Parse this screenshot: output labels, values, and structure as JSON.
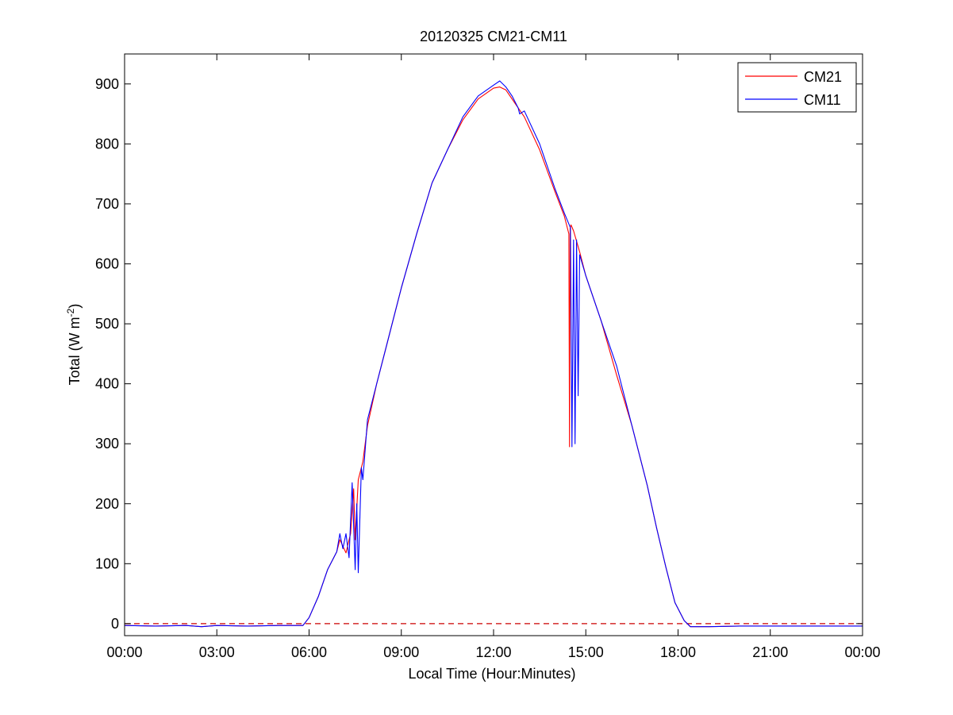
{
  "chart_data": {
    "type": "line",
    "title": "20120325 CM21-CM11",
    "xlabel": "Local Time (Hour:Minutes)",
    "ylabel": {
      "prefix": "Total (W m",
      "exponent": "-2",
      "suffix": ")"
    },
    "xlim": [
      0,
      24
    ],
    "ylim": [
      -20,
      950
    ],
    "x_ticks": [
      0,
      3,
      6,
      9,
      12,
      15,
      18,
      21,
      24
    ],
    "x_tick_labels": [
      "00:00",
      "03:00",
      "06:00",
      "09:00",
      "12:00",
      "15:00",
      "18:00",
      "21:00",
      "00:00"
    ],
    "y_ticks": [
      0,
      100,
      200,
      300,
      400,
      500,
      600,
      700,
      800,
      900
    ],
    "y_tick_labels": [
      "0",
      "100",
      "200",
      "300",
      "400",
      "500",
      "600",
      "700",
      "800",
      "900"
    ],
    "x_units": "hours",
    "grid": false,
    "legend_position": "top-right",
    "reference_line": {
      "y": 0,
      "style": "dashed",
      "color": "#cc0000"
    },
    "series": [
      {
        "name": "CM21",
        "color": "#ff0000",
        "x": [
          0,
          1,
          2,
          2.5,
          3,
          4,
          5,
          5.8,
          6.0,
          6.3,
          6.6,
          6.9,
          7.0,
          7.2,
          7.35,
          7.45,
          7.5,
          7.6,
          7.75,
          7.9,
          8.2,
          8.5,
          9.0,
          9.5,
          10.0,
          10.5,
          11.0,
          11.5,
          12.0,
          12.2,
          12.4,
          12.6,
          13.0,
          13.5,
          14.0,
          14.3,
          14.45,
          14.47,
          14.49,
          14.52,
          14.6,
          14.8,
          15.0,
          15.5,
          16.0,
          16.5,
          17.0,
          17.3,
          17.6,
          17.9,
          18.2,
          18.4,
          19.0,
          20.0,
          21.0,
          22.0,
          23.0,
          24.0
        ],
        "y": [
          -3,
          -4,
          -3,
          -5,
          -3,
          -4,
          -3,
          -3,
          10,
          45,
          90,
          120,
          140,
          118,
          150,
          225,
          140,
          240,
          270,
          330,
          400,
          460,
          560,
          650,
          735,
          790,
          840,
          875,
          893,
          895,
          890,
          875,
          845,
          790,
          720,
          680,
          650,
          295,
          660,
          665,
          655,
          620,
          580,
          505,
          415,
          330,
          230,
          160,
          95,
          35,
          5,
          -5,
          -5,
          -4,
          -4,
          -4,
          -4,
          -4
        ]
      },
      {
        "name": "CM11",
        "color": "#0000ff",
        "x": [
          0,
          1,
          2,
          2.5,
          3,
          4,
          5,
          5.8,
          6.0,
          6.3,
          6.6,
          6.9,
          7.0,
          7.1,
          7.2,
          7.3,
          7.4,
          7.5,
          7.55,
          7.6,
          7.7,
          7.75,
          7.9,
          8.2,
          8.5,
          9.0,
          9.5,
          10.0,
          10.5,
          11.0,
          11.5,
          12.0,
          12.2,
          12.4,
          12.6,
          12.8,
          12.85,
          13.0,
          13.5,
          14.0,
          14.3,
          14.5,
          14.55,
          14.6,
          14.65,
          14.7,
          14.75,
          14.8,
          15.0,
          15.5,
          16.0,
          16.5,
          17.0,
          17.3,
          17.6,
          17.9,
          18.2,
          18.4,
          19.0,
          20.0,
          21.0,
          22.0,
          23.0,
          24.0
        ],
        "y": [
          -3,
          -4,
          -3,
          -5,
          -3,
          -4,
          -3,
          -3,
          10,
          45,
          90,
          120,
          150,
          125,
          150,
          110,
          235,
          90,
          200,
          85,
          260,
          240,
          340,
          400,
          460,
          560,
          650,
          735,
          790,
          845,
          880,
          898,
          905,
          895,
          880,
          860,
          850,
          855,
          800,
          725,
          685,
          660,
          295,
          640,
          300,
          640,
          380,
          615,
          580,
          505,
          430,
          330,
          230,
          160,
          95,
          35,
          5,
          -5,
          -5,
          -4,
          -4,
          -4,
          -4,
          -4
        ]
      }
    ]
  }
}
